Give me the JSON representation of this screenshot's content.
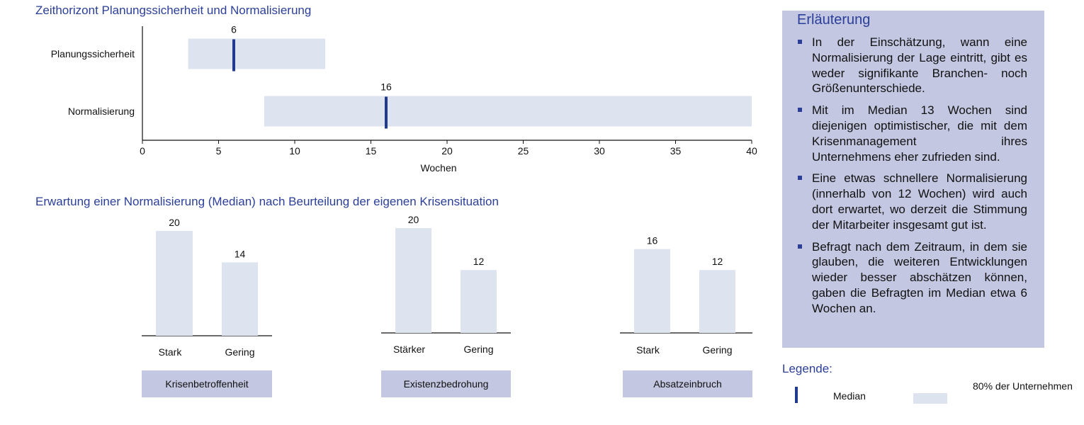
{
  "top_section": {
    "title": "Zeithorizont Planungssicherheit und Normalisierung"
  },
  "chart_data": [
    {
      "type": "bar",
      "subtype": "horizontal-range-with-median",
      "categories": [
        "Planungssicherheit",
        "Normalisierung"
      ],
      "series": [
        {
          "name": "80% der Unternehmen",
          "ranges": [
            [
              3,
              12
            ],
            [
              8,
              40
            ]
          ]
        },
        {
          "name": "Median",
          "values": [
            6,
            16
          ]
        }
      ],
      "data_labels": [
        "6",
        "16"
      ],
      "xlabel": "Wochen",
      "ylabel": "",
      "xlim": [
        0,
        40
      ],
      "xticks": [
        0,
        5,
        10,
        15,
        20,
        25,
        30,
        35,
        40
      ],
      "colors": {
        "range": "#dde3ef",
        "median": "#223a8e"
      },
      "grid": false
    },
    {
      "type": "bar",
      "group": "Krisenbetroffenheit",
      "categories": [
        "Stark",
        "Gering"
      ],
      "values": [
        20,
        14
      ],
      "ylim": [
        0,
        20
      ]
    },
    {
      "type": "bar",
      "group": "Existenzbedrohung",
      "categories": [
        "Stärker",
        "Gering"
      ],
      "values": [
        20,
        12
      ],
      "ylim": [
        0,
        20
      ]
    },
    {
      "type": "bar",
      "group": "Absatzeinbruch",
      "categories": [
        "Stark",
        "Gering"
      ],
      "values": [
        16,
        12
      ],
      "ylim": [
        0,
        20
      ]
    }
  ],
  "bottom_section": {
    "title": "Erwartung einer Normalisierung (Median) nach Beurteilung der eigenen Krisensituation"
  },
  "explanation": {
    "title": "Erläuterung",
    "bullets": [
      "In der Einschätzung, wann eine Normalisierung der Lage eintritt, gibt es weder signifikante Branchen- noch Größenunterschiede.",
      "Mit im Median 13 Wochen sind diejenigen optimistischer, die mit dem Krisenmanagement ihres Unternehmens eher zufrieden sind.",
      "Eine etwas schnellere Normalisierung (innerhalb von 12 Wochen) wird auch dort erwartet, wo derzeit die Stimmung der Mitarbeiter insgesamt gut ist.",
      "Befragt nach dem Zeitraum, in dem sie glauben, die weiteren Entwicklungen wieder besser abschätzen können, gaben die Befragten im Median etwa 6 Wochen an."
    ]
  },
  "legend": {
    "title": "Legende:",
    "median_label": "Median",
    "range_label": "80% der Unternehmen"
  },
  "colors": {
    "title": "#2b3f98",
    "panel": "#c3c7e2",
    "bar": "#dde3ef",
    "median": "#223a8e"
  }
}
